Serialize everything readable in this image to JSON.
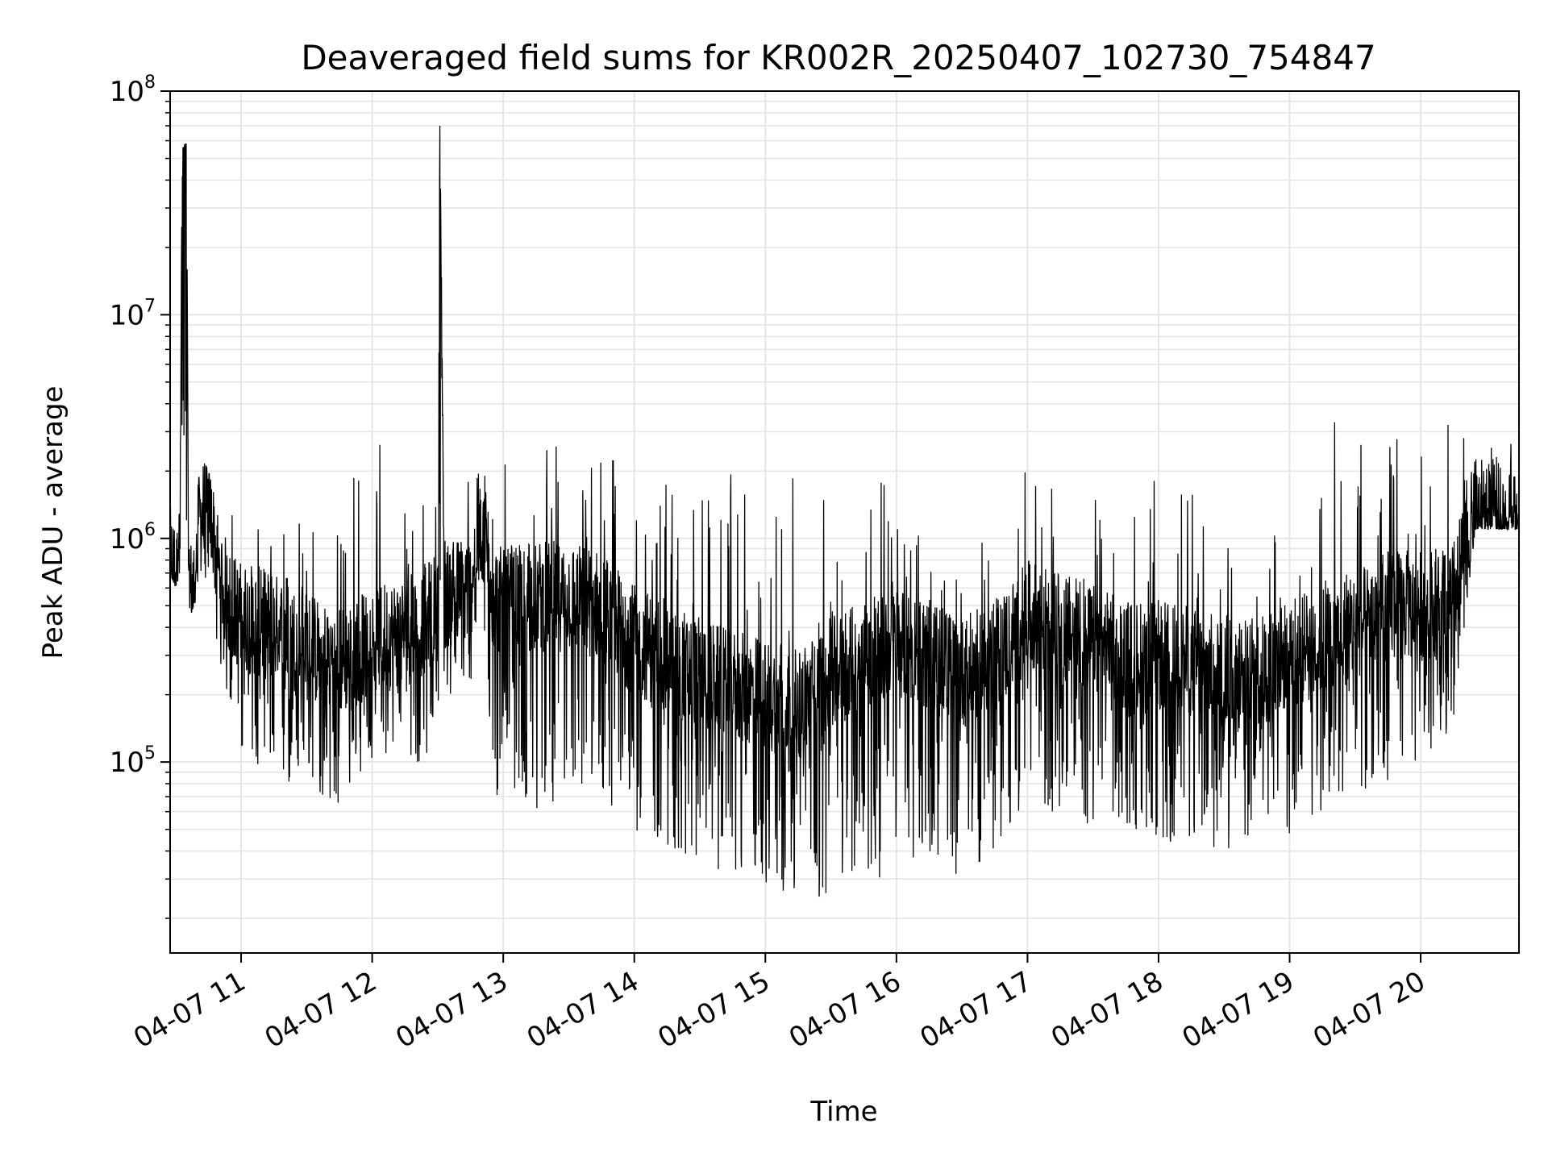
{
  "chart_data": {
    "type": "line",
    "title": "Deaveraged field sums for KR002R_20250407_102730_754847",
    "xlabel": "Time",
    "ylabel": "Peak ADU - average",
    "yscale": "log",
    "ylim": [
      14000,
      100000000
    ],
    "xlim": [
      "2025-04-07 10:27:30",
      "2025-04-07 20:45:00"
    ],
    "grid": true,
    "line_color": "#000000",
    "grid_color": "#e5e5e5",
    "x_ticks": [
      "2025-04-07 11:00",
      "2025-04-07 12:00",
      "2025-04-07 13:00",
      "2025-04-07 14:00",
      "2025-04-07 15:00",
      "2025-04-07 16:00",
      "2025-04-07 17:00",
      "2025-04-07 18:00",
      "2025-04-07 19:00",
      "2025-04-07 20:00"
    ],
    "x_tick_labels": [
      "04-07 11",
      "04-07 12",
      "04-07 13",
      "04-07 14",
      "04-07 15",
      "04-07 16",
      "04-07 17",
      "04-07 18",
      "04-07 19",
      "04-07 20"
    ],
    "y_ticks": [
      {
        "value": 100000,
        "base": "10",
        "exp": "5"
      },
      {
        "value": 1000000,
        "base": "10",
        "exp": "6"
      },
      {
        "value": 10000000,
        "base": "10",
        "exp": "7"
      },
      {
        "value": 100000000,
        "base": "10",
        "exp": "8"
      }
    ],
    "series": [
      {
        "x": [
          "2025-04-07 10:27:30",
          "2025-04-07 10:30",
          "2025-04-07 10:32",
          "2025-04-07 10:33",
          "2025-04-07 10:34",
          "2025-04-07 10:35",
          "2025-04-07 10:36",
          "2025-04-07 10:38",
          "2025-04-07 10:41",
          "2025-04-07 10:45",
          "2025-04-07 10:50",
          "2025-04-07 10:55",
          "2025-04-07 11:00",
          "2025-04-07 11:15",
          "2025-04-07 11:30",
          "2025-04-07 11:45",
          "2025-04-07 12:00",
          "2025-04-07 12:20",
          "2025-04-07 12:30",
          "2025-04-07 12:31",
          "2025-04-07 12:33",
          "2025-04-07 12:45",
          "2025-04-07 12:50",
          "2025-04-07 12:55",
          "2025-04-07 13:00",
          "2025-04-07 13:15",
          "2025-04-07 13:30",
          "2025-04-07 13:45",
          "2025-04-07 14:00",
          "2025-04-07 14:15",
          "2025-04-07 14:30",
          "2025-04-07 14:45",
          "2025-04-07 15:00",
          "2025-04-07 15:15",
          "2025-04-07 15:30",
          "2025-04-07 15:45",
          "2025-04-07 16:00",
          "2025-04-07 16:15",
          "2025-04-07 16:30",
          "2025-04-07 16:45",
          "2025-04-07 17:00",
          "2025-04-07 17:15",
          "2025-04-07 17:30",
          "2025-04-07 17:45",
          "2025-04-07 18:00",
          "2025-04-07 18:15",
          "2025-04-07 18:30",
          "2025-04-07 18:45",
          "2025-04-07 19:00",
          "2025-04-07 19:15",
          "2025-04-07 19:30",
          "2025-04-07 19:45",
          "2025-04-07 20:00",
          "2025-04-07 20:15",
          "2025-04-07 20:25",
          "2025-04-07 20:35",
          "2025-04-07 20:45"
        ],
        "y": [
          800000,
          700000,
          1300000,
          40000000,
          55000000,
          55000000,
          600000,
          550000,
          1200000,
          1400000,
          700000,
          500000,
          450000,
          400000,
          330000,
          280000,
          350000,
          400000,
          500000,
          70000000,
          550000,
          600000,
          1500000,
          600000,
          500000,
          550000,
          550000,
          500000,
          350000,
          300000,
          250000,
          220000,
          200000,
          180000,
          250000,
          300000,
          350000,
          300000,
          250000,
          300000,
          450000,
          400000,
          350000,
          300000,
          300000,
          280000,
          250000,
          250000,
          300000,
          350000,
          400000,
          500000,
          500000,
          550000,
          1300000,
          1300000,
          1300000
        ],
        "y_min": [
          700000,
          600000,
          700000,
          1000000,
          1000000,
          1000000,
          500000,
          450000,
          700000,
          600000,
          300000,
          150000,
          100000,
          70000,
          80000,
          60000,
          100000,
          80000,
          150000,
          150000,
          200000,
          200000,
          700000,
          45000,
          80000,
          60000,
          70000,
          70000,
          50000,
          40000,
          35000,
          30000,
          28000,
          22000,
          25000,
          30000,
          22000,
          40000,
          30000,
          40000,
          60000,
          60000,
          50000,
          50000,
          45000,
          40000,
          40000,
          45000,
          45000,
          60000,
          70000,
          80000,
          90000,
          150000,
          1100000,
          1100000,
          1100000
        ],
        "y_max": [
          2000000,
          900000,
          1400000,
          55000000,
          58000000,
          58000000,
          700000,
          4500000,
          2500000,
          2000000,
          1400000,
          2300000,
          1200000,
          1400000,
          1500000,
          1600000,
          3000000,
          1500000,
          1500000,
          70000000,
          1000000,
          2500000,
          3300000,
          3000000,
          2500000,
          2700000,
          2800000,
          3000000,
          1700000,
          1800000,
          1900000,
          2000000,
          1800000,
          1900000,
          1800000,
          1800000,
          1900000,
          1900000,
          1800000,
          2000000,
          3200000,
          1500000,
          1600000,
          1700000,
          1900000,
          1800000,
          1900000,
          1900000,
          2300000,
          3500000,
          3000000,
          3000000,
          3300000,
          3400000,
          2500000,
          2600000,
          2700000
        ]
      }
    ]
  }
}
